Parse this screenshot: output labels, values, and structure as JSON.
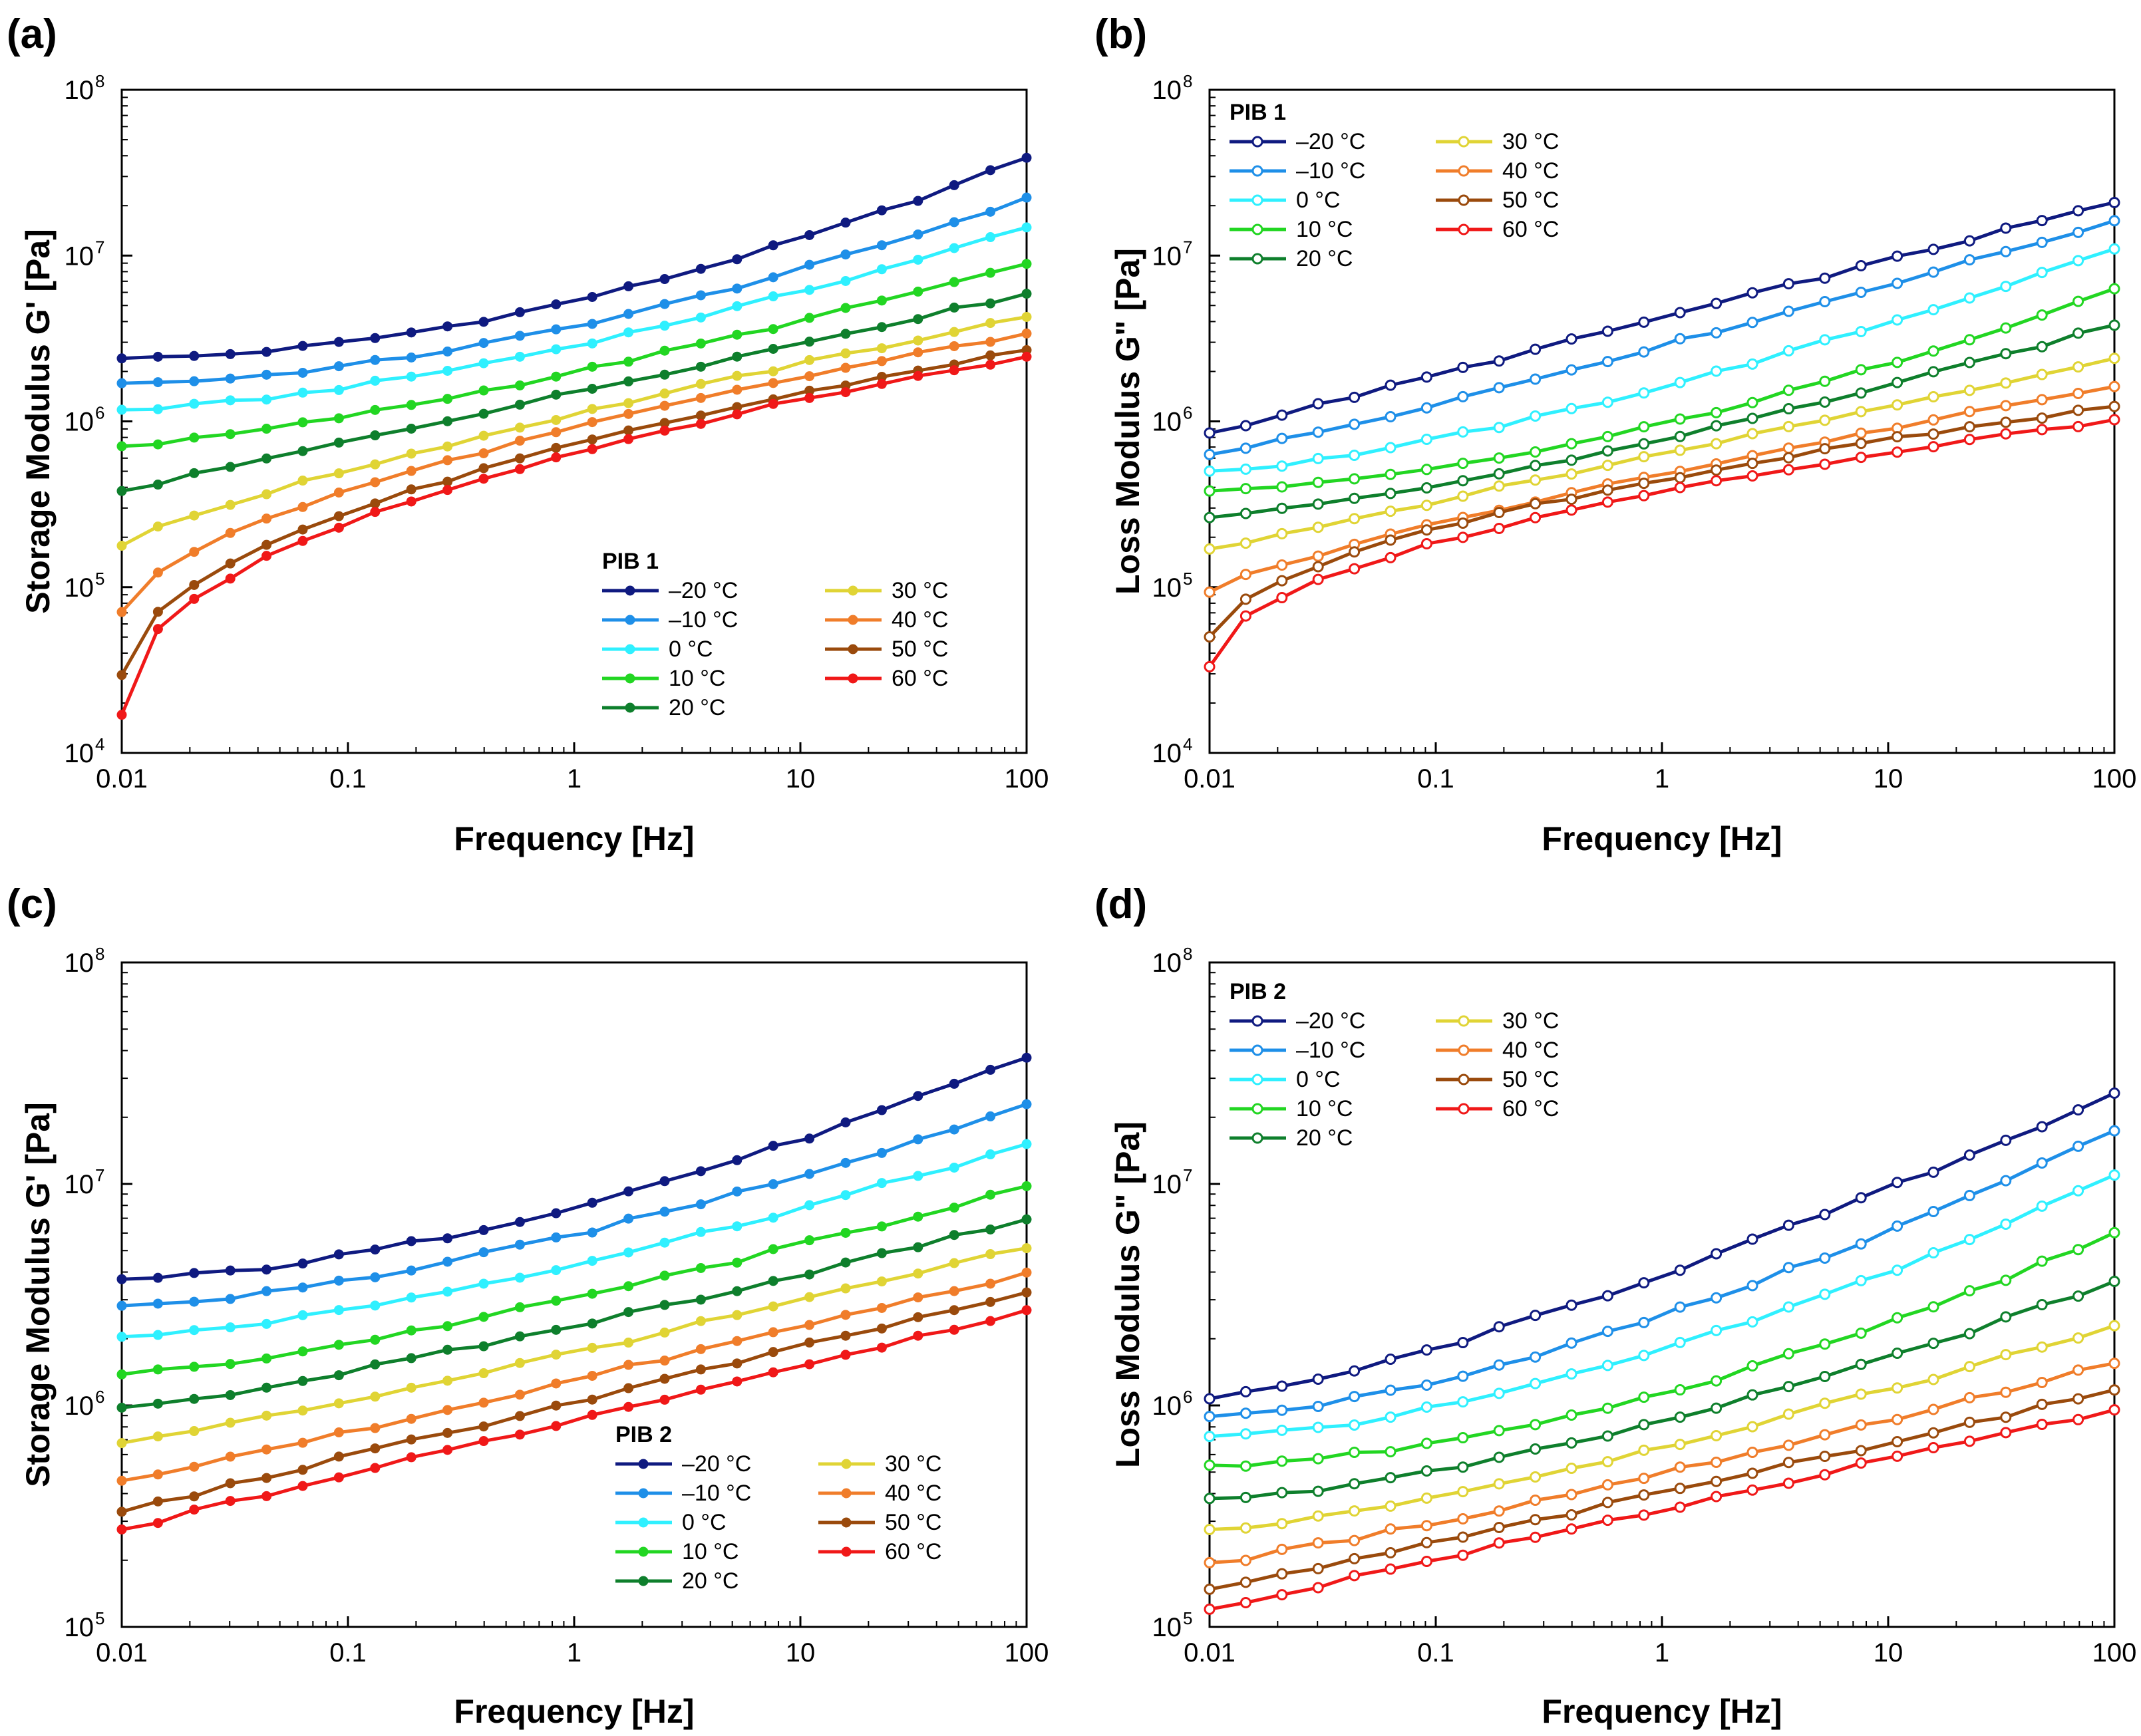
{
  "figure": {
    "panels": [
      "(a)",
      "(b)",
      "(c)",
      "(d)"
    ]
  },
  "series_colors": {
    "-20 °C": "#0f1a80",
    "-10 °C": "#1e8fe8",
    "0 °C": "#2ff0ff",
    "10 °C": "#22d622",
    "20 °C": "#0e7f2c",
    "30 °C": "#e0d435",
    "40 °C": "#f07d2a",
    "50 °C": "#9a4a0c",
    "60 °C": "#f01818"
  },
  "chart_data": [
    {
      "panel": "(a)",
      "type": "line",
      "marker": "filled",
      "xlabel": "Frequency [Hz]",
      "ylabel": "Storage Modulus G' [Pa]",
      "xscale": "log",
      "yscale": "log",
      "xlim": [
        0.01,
        100
      ],
      "ylim": [
        10000,
        100000000
      ],
      "xticks": [
        "0.01",
        "0.1",
        "1",
        "10",
        "100"
      ],
      "yticks": [
        {
          "base": "10",
          "exp": "4"
        },
        {
          "base": "10",
          "exp": "5"
        },
        {
          "base": "10",
          "exp": "6"
        },
        {
          "base": "10",
          "exp": "7"
        },
        {
          "base": "10",
          "exp": "8"
        }
      ],
      "legend": {
        "title": "PIB 1",
        "position": "lower-right",
        "col1": [
          "–20 °C",
          "–10 °C",
          "0 °C",
          "10 °C",
          "20 °C"
        ],
        "col2": [
          "30 °C",
          "40 °C",
          "50 °C",
          "60 °C"
        ]
      },
      "log_x_range": [
        -2,
        2
      ],
      "series": [
        {
          "name": "-20 °C",
          "log_y_start": 6.38,
          "log_y_end": 7.59,
          "shape": 1.8
        },
        {
          "name": "-10 °C",
          "log_y_start": 6.23,
          "log_y_end": 7.35,
          "shape": 1.7
        },
        {
          "name": "0 °C",
          "log_y_start": 6.07,
          "log_y_end": 7.17,
          "shape": 1.5
        },
        {
          "name": "10 °C",
          "log_y_start": 5.85,
          "log_y_end": 6.95,
          "shape": 1.3
        },
        {
          "name": "20 °C",
          "log_y_start": 5.58,
          "log_y_end": 6.77,
          "shape": 1.0
        },
        {
          "name": "30 °C",
          "log_y_start": 5.25,
          "log_y_end": 6.63,
          "shape": 0.8
        },
        {
          "name": "40 °C",
          "log_y_start": 4.85,
          "log_y_end": 6.53,
          "shape": 0.6
        },
        {
          "name": "50 °C",
          "log_y_start": 4.47,
          "log_y_end": 6.43,
          "shape": 0.5
        },
        {
          "name": "60 °C",
          "log_y_start": 4.23,
          "log_y_end": 6.39,
          "shape": 0.45
        }
      ]
    },
    {
      "panel": "(b)",
      "type": "line",
      "marker": "open",
      "xlabel": "Frequency [Hz]",
      "ylabel": "Loss Modulus G\" [Pa]",
      "xscale": "log",
      "yscale": "log",
      "xlim": [
        0.01,
        100
      ],
      "ylim": [
        10000,
        100000000
      ],
      "xticks": [
        "0.01",
        "0.1",
        "1",
        "10",
        "100"
      ],
      "yticks": [
        {
          "base": "10",
          "exp": "4"
        },
        {
          "base": "10",
          "exp": "5"
        },
        {
          "base": "10",
          "exp": "6"
        },
        {
          "base": "10",
          "exp": "7"
        },
        {
          "base": "10",
          "exp": "8"
        }
      ],
      "legend": {
        "title": "PIB 1",
        "position": "top-left",
        "col1": [
          "–20 °C",
          "–10 °C",
          "0 °C",
          "10 °C",
          "20 °C"
        ],
        "col2": [
          "30 °C",
          "40 °C",
          "50 °C",
          "60 °C"
        ]
      },
      "log_x_range": [
        -2,
        2
      ],
      "series": [
        {
          "name": "-20 °C",
          "log_y_start": 5.93,
          "log_y_end": 7.32,
          "shape": 1.0
        },
        {
          "name": "-10 °C",
          "log_y_start": 5.8,
          "log_y_end": 7.21,
          "shape": 1.1
        },
        {
          "name": "0 °C",
          "log_y_start": 5.7,
          "log_y_end": 7.04,
          "shape": 1.4
        },
        {
          "name": "10 °C",
          "log_y_start": 5.58,
          "log_y_end": 6.8,
          "shape": 1.6
        },
        {
          "name": "20 °C",
          "log_y_start": 5.42,
          "log_y_end": 6.58,
          "shape": 1.3
        },
        {
          "name": "30 °C",
          "log_y_start": 5.23,
          "log_y_end": 6.38,
          "shape": 1.0
        },
        {
          "name": "40 °C",
          "log_y_start": 4.97,
          "log_y_end": 6.21,
          "shape": 0.8
        },
        {
          "name": "50 °C",
          "log_y_start": 4.7,
          "log_y_end": 6.09,
          "shape": 0.55
        },
        {
          "name": "60 °C",
          "log_y_start": 4.52,
          "log_y_end": 6.01,
          "shape": 0.5
        }
      ]
    },
    {
      "panel": "(c)",
      "type": "line",
      "marker": "filled",
      "xlabel": "Frequency [Hz]",
      "ylabel": "Storage Modulus G' [Pa]",
      "xscale": "log",
      "yscale": "log",
      "xlim": [
        0.01,
        100
      ],
      "ylim": [
        100000,
        100000000
      ],
      "xticks": [
        "0.01",
        "0.1",
        "1",
        "10",
        "100"
      ],
      "yticks": [
        {
          "base": "10",
          "exp": "5"
        },
        {
          "base": "10",
          "exp": "6"
        },
        {
          "base": "10",
          "exp": "7"
        },
        {
          "base": "10",
          "exp": "8"
        }
      ],
      "legend": {
        "title": "PIB 2",
        "position": "lower-right",
        "col1": [
          "–20 °C",
          "–10 °C",
          "0 °C",
          "10 °C",
          "20 °C"
        ],
        "col2": [
          "30 °C",
          "40 °C",
          "50 °C",
          "60 °C"
        ]
      },
      "log_x_range": [
        -2,
        2
      ],
      "series": [
        {
          "name": "-20 °C",
          "log_y_start": 6.57,
          "log_y_end": 7.57,
          "shape": 1.6
        },
        {
          "name": "-10 °C",
          "log_y_start": 6.45,
          "log_y_end": 7.36,
          "shape": 1.5
        },
        {
          "name": "0 °C",
          "log_y_start": 6.31,
          "log_y_end": 7.18,
          "shape": 1.4
        },
        {
          "name": "10 °C",
          "log_y_start": 6.14,
          "log_y_end": 6.99,
          "shape": 1.3
        },
        {
          "name": "20 °C",
          "log_y_start": 5.99,
          "log_y_end": 6.84,
          "shape": 1.2
        },
        {
          "name": "30 °C",
          "log_y_start": 5.83,
          "log_y_end": 6.71,
          "shape": 1.1
        },
        {
          "name": "40 °C",
          "log_y_start": 5.66,
          "log_y_end": 6.6,
          "shape": 1.05
        },
        {
          "name": "50 °C",
          "log_y_start": 5.52,
          "log_y_end": 6.51,
          "shape": 1.0
        },
        {
          "name": "60 °C",
          "log_y_start": 5.44,
          "log_y_end": 6.43,
          "shape": 1.0
        }
      ]
    },
    {
      "panel": "(d)",
      "type": "line",
      "marker": "open",
      "xlabel": "Frequency [Hz]",
      "ylabel": "Loss Modulus G\" [Pa]",
      "xscale": "log",
      "yscale": "log",
      "xlim": [
        0.01,
        100
      ],
      "ylim": [
        100000,
        100000000
      ],
      "xticks": [
        "0.01",
        "0.1",
        "1",
        "10",
        "100"
      ],
      "yticks": [
        {
          "base": "10",
          "exp": "5"
        },
        {
          "base": "10",
          "exp": "6"
        },
        {
          "base": "10",
          "exp": "7"
        },
        {
          "base": "10",
          "exp": "8"
        }
      ],
      "legend": {
        "title": "PIB 2",
        "position": "top-left",
        "col1": [
          "–20 °C",
          "–10 °C",
          "0 °C",
          "10 °C",
          "20 °C"
        ],
        "col2": [
          "30 °C",
          "40 °C",
          "50 °C",
          "60 °C"
        ]
      },
      "log_x_range": [
        -2,
        2
      ],
      "series": [
        {
          "name": "-20 °C",
          "log_y_start": 6.03,
          "log_y_end": 7.41,
          "shape": 1.3
        },
        {
          "name": "-10 °C",
          "log_y_start": 5.95,
          "log_y_end": 7.24,
          "shape": 1.5
        },
        {
          "name": "0 °C",
          "log_y_start": 5.86,
          "log_y_end": 7.04,
          "shape": 1.6
        },
        {
          "name": "10 °C",
          "log_y_start": 5.73,
          "log_y_end": 6.78,
          "shape": 1.7
        },
        {
          "name": "20 °C",
          "log_y_start": 5.58,
          "log_y_end": 6.56,
          "shape": 1.5
        },
        {
          "name": "30 °C",
          "log_y_start": 5.44,
          "log_y_end": 6.36,
          "shape": 1.3
        },
        {
          "name": "40 °C",
          "log_y_start": 5.29,
          "log_y_end": 6.19,
          "shape": 1.15
        },
        {
          "name": "50 °C",
          "log_y_start": 5.17,
          "log_y_end": 6.07,
          "shape": 1.05
        },
        {
          "name": "60 °C",
          "log_y_start": 5.08,
          "log_y_end": 5.98,
          "shape": 1.0
        }
      ]
    }
  ]
}
